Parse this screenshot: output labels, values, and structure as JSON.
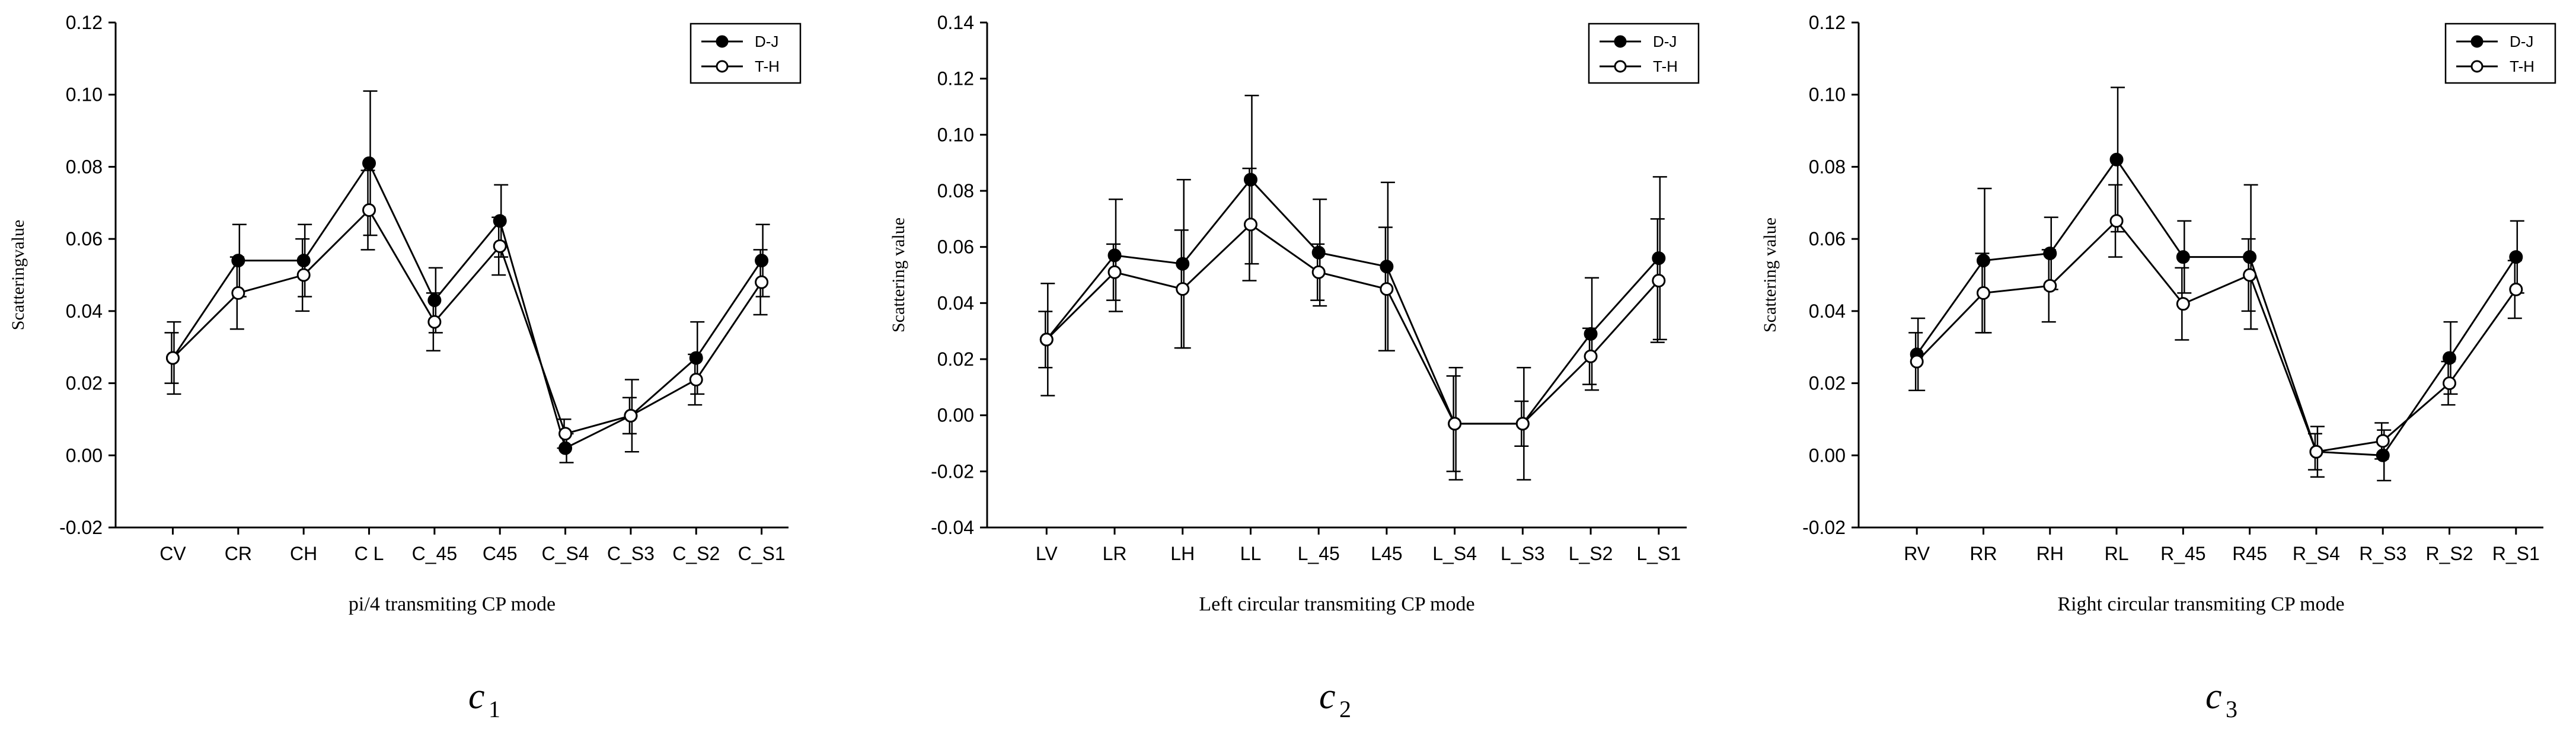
{
  "chart_data": [
    {
      "type": "line",
      "title": "",
      "xlabel": "pi/4 transmiting CP mode",
      "ylabel": "Scatteringvalue",
      "ylim": [
        -0.02,
        0.12
      ],
      "yticks": [
        -0.02,
        0.0,
        0.02,
        0.04,
        0.06,
        0.08,
        0.1,
        0.12
      ],
      "ytick_labels": [
        "-0.02",
        "0.00",
        "0.02",
        "0.04",
        "0.06",
        "0.08",
        "0.10",
        "0.12"
      ],
      "categories": [
        "CV",
        "CR",
        "CH",
        "C L",
        "C_45",
        "C45",
        "C_S4",
        "C_S3",
        "C_S2",
        "C_S1"
      ],
      "legend": {
        "position": "top-right",
        "entries": [
          "D-J",
          "T-H"
        ]
      },
      "panel_label": {
        "letter": "c",
        "sub": "1"
      },
      "series": [
        {
          "name": "D-J",
          "marker": "filled-circle",
          "values": [
            0.027,
            0.054,
            0.054,
            0.081,
            0.043,
            0.065,
            0.002,
            0.011,
            0.027,
            0.054
          ],
          "errors": [
            0.01,
            0.01,
            0.01,
            0.02,
            0.009,
            0.01,
            0.004,
            0.01,
            0.01,
            0.01
          ]
        },
        {
          "name": "T-H",
          "marker": "open-circle",
          "values": [
            0.027,
            0.045,
            0.05,
            0.068,
            0.037,
            0.058,
            0.006,
            0.011,
            0.021,
            0.048
          ],
          "errors": [
            0.007,
            0.01,
            0.01,
            0.011,
            0.008,
            0.008,
            0.004,
            0.005,
            0.007,
            0.009
          ]
        }
      ]
    },
    {
      "type": "line",
      "title": "",
      "xlabel": "Left circular transmiting CP mode",
      "ylabel": "Scattering value",
      "ylim": [
        -0.04,
        0.14
      ],
      "yticks": [
        -0.04,
        -0.02,
        0.0,
        0.02,
        0.04,
        0.06,
        0.08,
        0.1,
        0.12,
        0.14
      ],
      "ytick_labels": [
        "-0.04",
        "-0.02",
        "0.00",
        "0.02",
        "0.04",
        "0.06",
        "0.08",
        "0.10",
        "0.12",
        "0.14"
      ],
      "categories": [
        "LV",
        "LR",
        "LH",
        "LL",
        "L_45",
        "L45",
        "L_S4",
        "L_S3",
        "L_S2",
        "L_S1"
      ],
      "legend": {
        "position": "top-right",
        "entries": [
          "D-J",
          "T-H"
        ]
      },
      "panel_label": {
        "letter": "c",
        "sub": "2"
      },
      "series": [
        {
          "name": "D-J",
          "marker": "filled-circle",
          "values": [
            0.027,
            0.057,
            0.054,
            0.084,
            0.058,
            0.053,
            -0.003,
            -0.003,
            0.029,
            0.056
          ],
          "errors": [
            0.02,
            0.02,
            0.03,
            0.03,
            0.019,
            0.03,
            0.02,
            0.02,
            0.02,
            0.029
          ]
        },
        {
          "name": "T-H",
          "marker": "open-circle",
          "values": [
            0.027,
            0.051,
            0.045,
            0.068,
            0.051,
            0.045,
            -0.003,
            -0.003,
            0.021,
            0.048
          ],
          "errors": [
            0.01,
            0.01,
            0.021,
            0.02,
            0.01,
            0.022,
            0.017,
            0.008,
            0.01,
            0.022
          ]
        }
      ]
    },
    {
      "type": "line",
      "title": "",
      "xlabel": "Right circular transmiting CP mode",
      "ylabel": "Scattering value",
      "ylim": [
        -0.02,
        0.12
      ],
      "yticks": [
        -0.02,
        0.0,
        0.02,
        0.04,
        0.06,
        0.08,
        0.1,
        0.12
      ],
      "ytick_labels": [
        "-0.02",
        "0.00",
        "0.02",
        "0.04",
        "0.06",
        "0.08",
        "0.10",
        "0.12"
      ],
      "categories": [
        "RV",
        "RR",
        "RH",
        "RL",
        "R_45",
        "R45",
        "R_S4",
        "R_S3",
        "R_S2",
        "R_S1"
      ],
      "legend": {
        "position": "top-right",
        "entries": [
          "D-J",
          "T-H"
        ]
      },
      "panel_label": {
        "letter": "c",
        "sub": "3"
      },
      "series": [
        {
          "name": "D-J",
          "marker": "filled-circle",
          "values": [
            0.028,
            0.054,
            0.056,
            0.082,
            0.055,
            0.055,
            0.001,
            0.0,
            0.027,
            0.055
          ],
          "errors": [
            0.01,
            0.02,
            0.01,
            0.02,
            0.01,
            0.02,
            0.007,
            0.007,
            0.01,
            0.01
          ]
        },
        {
          "name": "T-H",
          "marker": "open-circle",
          "values": [
            0.026,
            0.045,
            0.047,
            0.065,
            0.042,
            0.05,
            0.001,
            0.004,
            0.02,
            0.046
          ],
          "errors": [
            0.008,
            0.011,
            0.01,
            0.01,
            0.01,
            0.01,
            0.005,
            0.005,
            0.006,
            0.008
          ]
        }
      ]
    }
  ]
}
